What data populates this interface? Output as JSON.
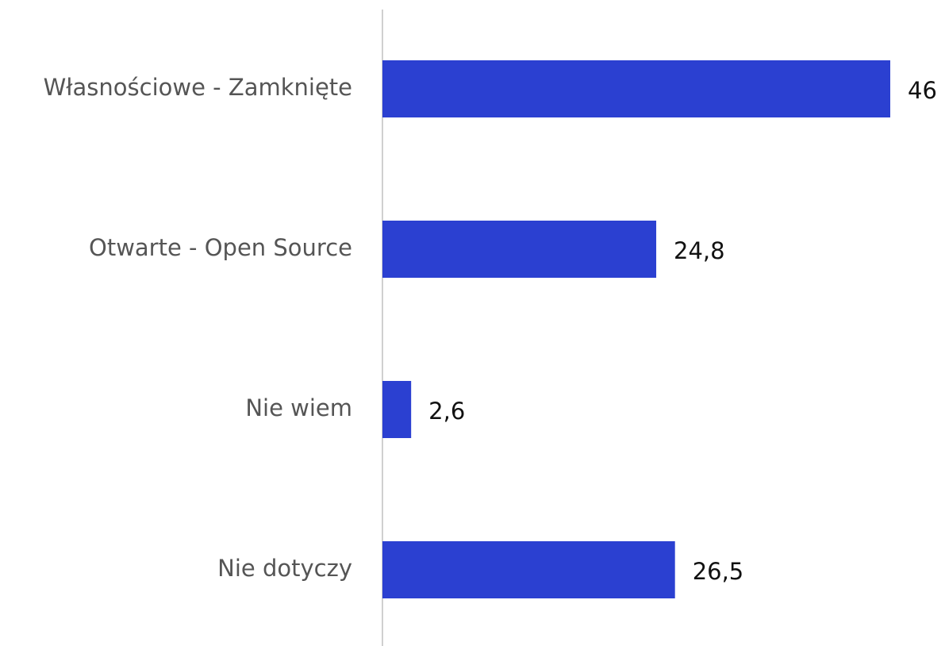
{
  "chart_data": {
    "type": "bar",
    "categories": [
      "Własnościowe - Zamknięte",
      "Otwarte - Open Source",
      "Nie wiem",
      "Nie dotyczy"
    ],
    "values": [
      46,
      24.8,
      2.6,
      26.5
    ],
    "value_labels": [
      "46",
      "24,8",
      "2,6",
      "26,5"
    ],
    "color": "#2b40d1"
  }
}
